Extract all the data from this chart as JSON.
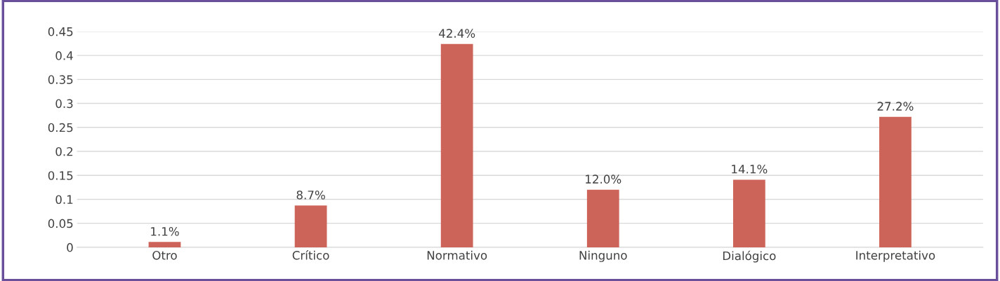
{
  "chart_data": {
    "type": "bar",
    "categories": [
      "Otro",
      "Crítico",
      "Normativo",
      "Ninguno",
      "Dialógico",
      "Interpretativo"
    ],
    "values": [
      0.011,
      0.087,
      0.424,
      0.12,
      0.141,
      0.272
    ],
    "value_labels": [
      "1.1%",
      "8.7%",
      "42.4%",
      "12.0%",
      "14.1%",
      "27.2%"
    ],
    "color": "#cd6459",
    "ylim": [
      0,
      0.45
    ],
    "yticks": [
      0,
      0.05,
      0.1,
      0.15,
      0.2,
      0.25,
      0.3,
      0.35,
      0.4,
      0.45
    ],
    "grid": "y",
    "legend": false
  }
}
